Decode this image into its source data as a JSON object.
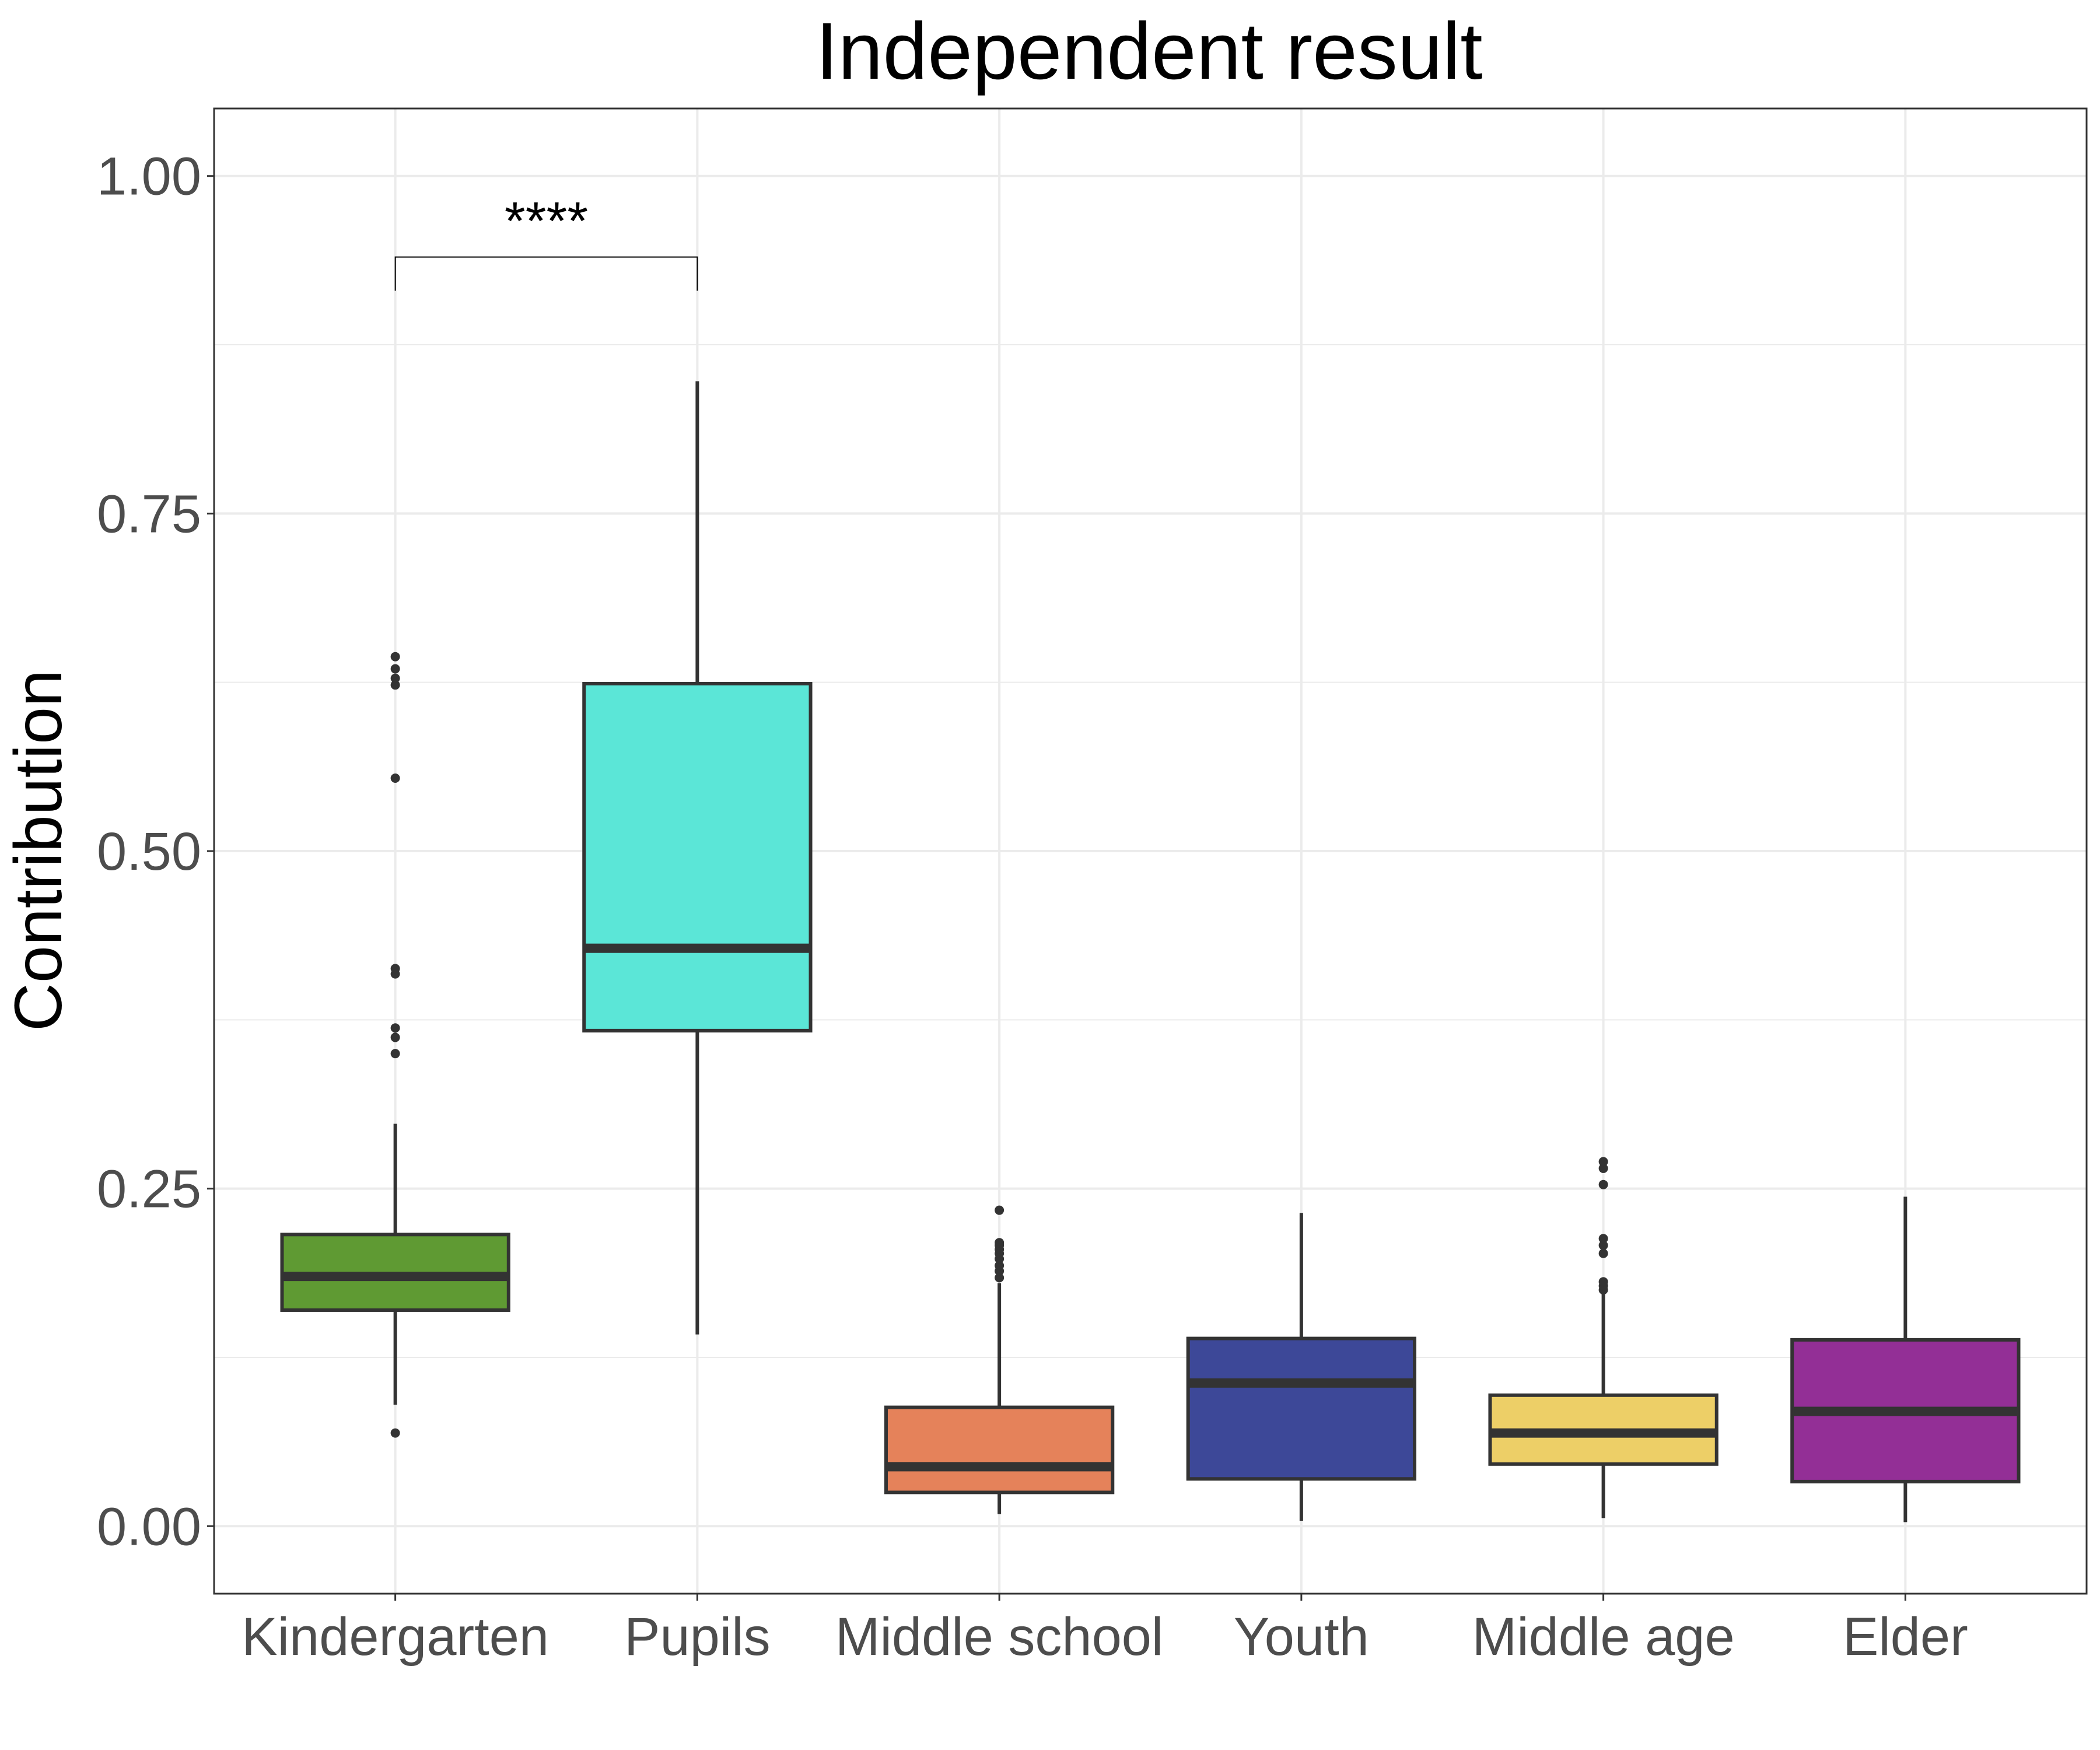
{
  "chart_data": {
    "type": "boxplot",
    "title": "Independent result",
    "xlabel": "",
    "ylabel": "Contribution",
    "ylim": [
      -0.05,
      1.05
    ],
    "yticks": [
      "0.00",
      "0.25",
      "0.50",
      "0.75",
      "1.00"
    ],
    "grid": true,
    "categories": [
      "Kindergarten",
      "Pupils",
      "Middle school",
      "Youth",
      "Middle age",
      "Elder"
    ],
    "colors": [
      "#5F9A33",
      "#5BE6D7",
      "#E5825A",
      "#3D4898",
      "#EDCF67",
      "#932F96"
    ],
    "boxes": [
      {
        "lower_whisker": 0.09,
        "q1": 0.16,
        "median": 0.185,
        "q3": 0.216,
        "upper_whisker": 0.298,
        "outliers": [
          0.069,
          0.35,
          0.362,
          0.369,
          0.409,
          0.413,
          0.554,
          0.623,
          0.628,
          0.635,
          0.644
        ]
      },
      {
        "lower_whisker": 0.142,
        "q1": 0.367,
        "median": 0.428,
        "q3": 0.624,
        "upper_whisker": 0.848,
        "outliers": []
      },
      {
        "lower_whisker": 0.009,
        "q1": 0.025,
        "median": 0.044,
        "q3": 0.088,
        "upper_whisker": 0.18,
        "outliers": [
          0.184,
          0.189,
          0.193,
          0.198,
          0.202,
          0.205,
          0.208,
          0.21,
          0.234
        ]
      },
      {
        "lower_whisker": 0.004,
        "q1": 0.035,
        "median": 0.106,
        "q3": 0.139,
        "upper_whisker": 0.232,
        "outliers": []
      },
      {
        "lower_whisker": 0.006,
        "q1": 0.046,
        "median": 0.069,
        "q3": 0.097,
        "upper_whisker": 0.172,
        "outliers": [
          0.175,
          0.178,
          0.181,
          0.202,
          0.208,
          0.213,
          0.253,
          0.265,
          0.27
        ]
      },
      {
        "lower_whisker": 0.003,
        "q1": 0.033,
        "median": 0.085,
        "q3": 0.138,
        "upper_whisker": 0.244,
        "outliers": []
      }
    ],
    "annotations": [
      {
        "text": "****",
        "from": "Kindergarten",
        "to": "Pupils",
        "y": 0.94,
        "tip_y": 0.915
      }
    ]
  }
}
